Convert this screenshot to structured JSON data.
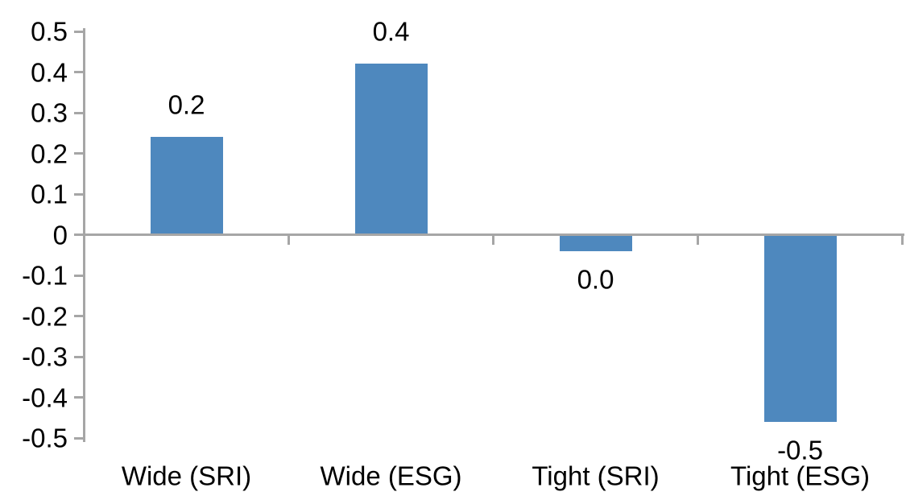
{
  "chart_data": {
    "type": "bar",
    "categories": [
      "Wide (SRI)",
      "Wide (ESG)",
      "Tight (SRI)",
      "Tight (ESG)"
    ],
    "values": [
      0.24,
      0.42,
      -0.04,
      -0.46
    ],
    "data_labels": [
      "0.2",
      "0.4",
      "0.0",
      "-0.5"
    ],
    "y_tick_values": [
      0.5,
      0.4,
      0.3,
      0.2,
      0.1,
      0,
      -0.1,
      -0.2,
      -0.3,
      -0.4,
      -0.5
    ],
    "y_tick_labels": [
      "0.5",
      "0.4",
      "0.3",
      "0.2",
      "0.1",
      "0",
      "-0.1",
      "-0.2",
      "-0.3",
      "-0.4",
      "-0.5"
    ],
    "ylim": [
      -0.5,
      0.5
    ],
    "xlabel": "",
    "ylabel": "",
    "grid": false,
    "legend_position": "none",
    "colors": {
      "bar": "#4E88BE",
      "axis": "#A6A6A6",
      "text": "#000000",
      "background": "#FFFFFF"
    }
  }
}
